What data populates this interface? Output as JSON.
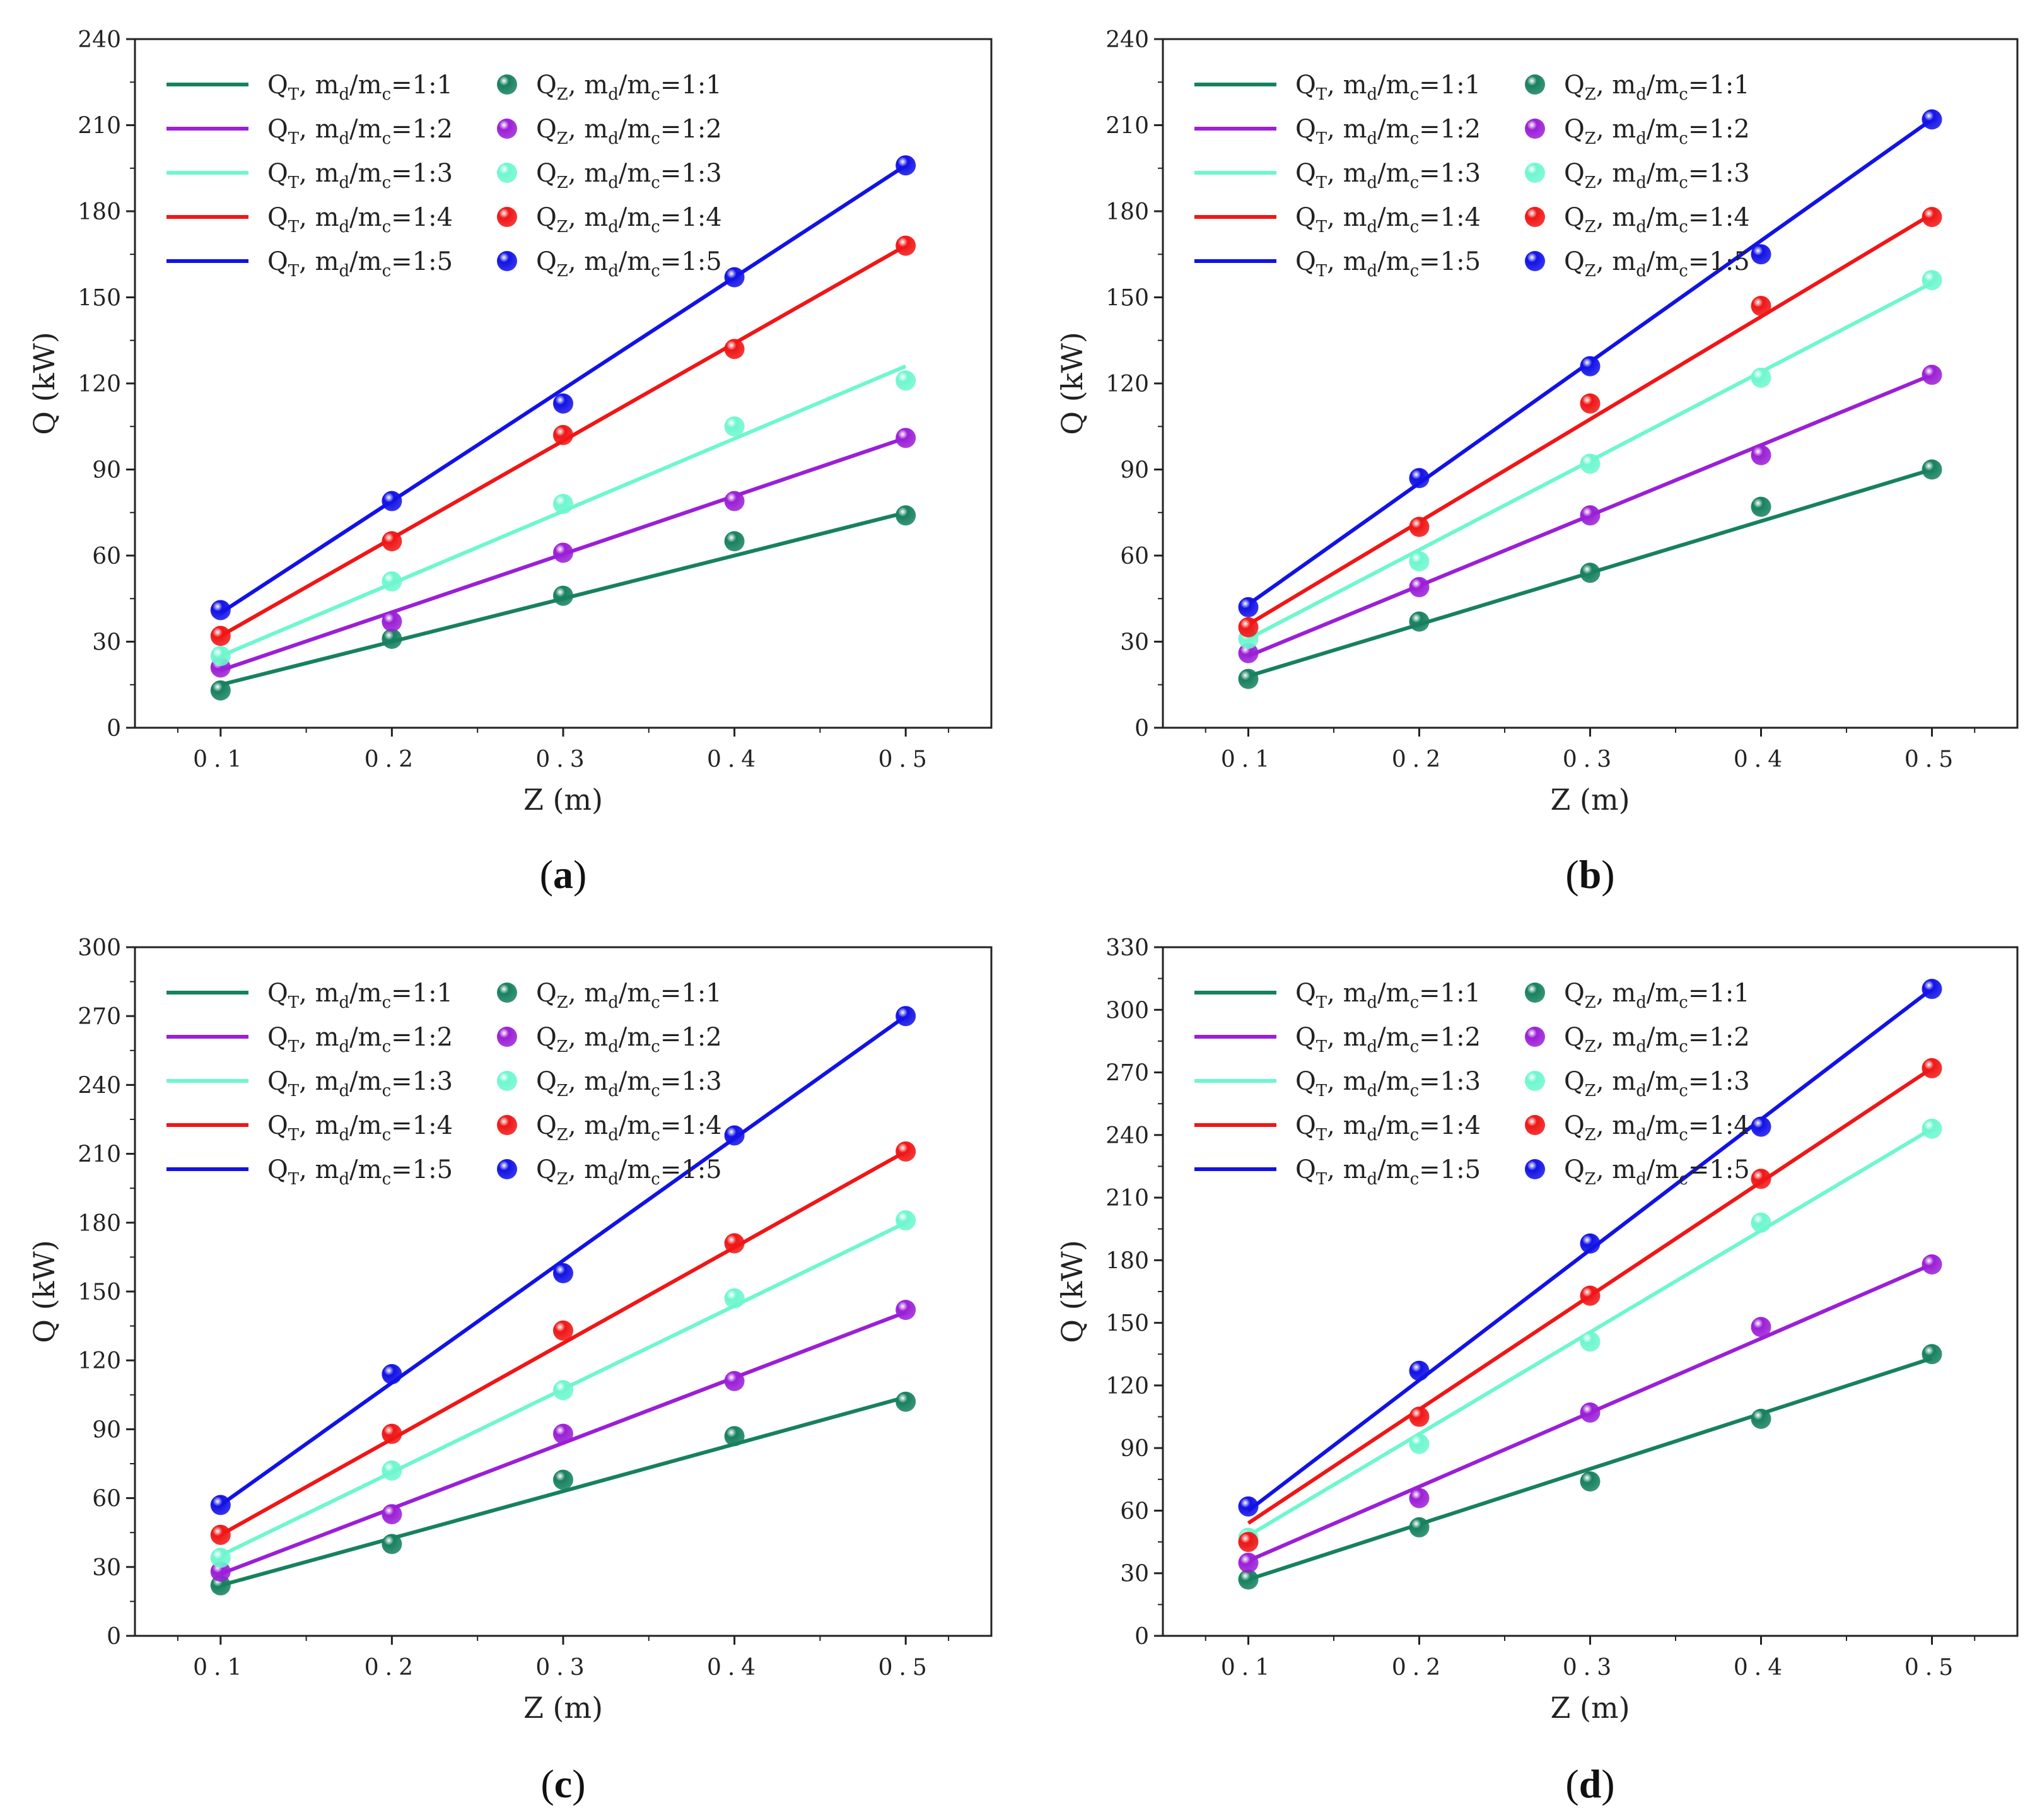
{
  "colors": {
    "1:1": "#17815f",
    "1:2": "#9b1fd6",
    "1:3": "#6ef7cf",
    "1:4": "#f01616",
    "1:5": "#1212e6",
    "axis": "#222222"
  },
  "legend_labels": {
    "line_prefix": "Q",
    "line_sub": "T",
    "point_prefix": "Q",
    "point_sub": "Z",
    "ratio_text": "m",
    "ratio_sub_d": "d",
    "ratio_slash": "/m",
    "ratio_sub_c": "c",
    "ratio_values": [
      "=1:1",
      "=1:2",
      "=1:3",
      "=1:4",
      "=1:5"
    ]
  },
  "chart_data": [
    {
      "type": "scatter",
      "panel_label": "a",
      "title": "",
      "xlabel": "Z (m)",
      "ylabel": "Q (kW)",
      "x": [
        0.1,
        0.2,
        0.3,
        0.4,
        0.5
      ],
      "x_tick_labels": [
        "0.1",
        "0.2",
        "0.3",
        "0.4",
        "0.5"
      ],
      "xlim": [
        0.05,
        0.55
      ],
      "ylim": [
        0,
        240
      ],
      "y_ticks": [
        0,
        30,
        60,
        90,
        120,
        150,
        180,
        210,
        240
      ],
      "legend": "top-left",
      "series": [
        {
          "name": "m_d/m_c=1:1",
          "ratio": "1:1",
          "points_QZ": [
            13,
            31,
            46,
            65,
            74
          ],
          "line_QT": [
            15,
            75
          ]
        },
        {
          "name": "m_d/m_c=1:2",
          "ratio": "1:2",
          "points_QZ": [
            21,
            37,
            61,
            79,
            101
          ],
          "line_QT": [
            20,
            101
          ]
        },
        {
          "name": "m_d/m_c=1:3",
          "ratio": "1:3",
          "points_QZ": [
            25,
            51,
            78,
            105,
            121
          ],
          "line_QT": [
            25,
            126
          ]
        },
        {
          "name": "m_d/m_c=1:4",
          "ratio": "1:4",
          "points_QZ": [
            32,
            65,
            102,
            132,
            168
          ],
          "line_QT": [
            32,
            168
          ]
        },
        {
          "name": "m_d/m_c=1:5",
          "ratio": "1:5",
          "points_QZ": [
            41,
            79,
            113,
            157,
            196
          ],
          "line_QT": [
            40,
            196
          ]
        }
      ]
    },
    {
      "type": "scatter",
      "panel_label": "b",
      "title": "",
      "xlabel": "Z (m)",
      "ylabel": "Q (kW)",
      "x": [
        0.1,
        0.2,
        0.3,
        0.4,
        0.5
      ],
      "x_tick_labels": [
        "0.1",
        "0.2",
        "0.3",
        "0.4",
        "0.5"
      ],
      "xlim": [
        0.05,
        0.55
      ],
      "ylim": [
        0,
        240
      ],
      "y_ticks": [
        0,
        30,
        60,
        90,
        120,
        150,
        180,
        210,
        240
      ],
      "legend": "top-left",
      "series": [
        {
          "name": "m_d/m_c=1:1",
          "ratio": "1:1",
          "points_QZ": [
            17,
            37,
            54,
            77,
            90
          ],
          "line_QT": [
            18,
            90
          ]
        },
        {
          "name": "m_d/m_c=1:2",
          "ratio": "1:2",
          "points_QZ": [
            26,
            49,
            74,
            95,
            123
          ],
          "line_QT": [
            25,
            123
          ]
        },
        {
          "name": "m_d/m_c=1:3",
          "ratio": "1:3",
          "points_QZ": [
            31,
            58,
            92,
            122,
            156
          ],
          "line_QT": [
            31,
            155
          ]
        },
        {
          "name": "m_d/m_c=1:4",
          "ratio": "1:4",
          "points_QZ": [
            35,
            70,
            113,
            147,
            178
          ],
          "line_QT": [
            36,
            179
          ]
        },
        {
          "name": "m_d/m_c=1:5",
          "ratio": "1:5",
          "points_QZ": [
            42,
            87,
            126,
            165,
            212
          ],
          "line_QT": [
            43,
            212
          ]
        }
      ]
    },
    {
      "type": "scatter",
      "panel_label": "c",
      "title": "",
      "xlabel": "Z (m)",
      "ylabel": "Q (kW)",
      "x": [
        0.1,
        0.2,
        0.3,
        0.4,
        0.5
      ],
      "x_tick_labels": [
        "0.1",
        "0.2",
        "0.3",
        "0.4",
        "0.5"
      ],
      "xlim": [
        0.05,
        0.55
      ],
      "ylim": [
        0,
        300
      ],
      "y_ticks": [
        0,
        30,
        60,
        90,
        120,
        150,
        180,
        210,
        240,
        270,
        300
      ],
      "legend": "top-left",
      "series": [
        {
          "name": "m_d/m_c=1:1",
          "ratio": "1:1",
          "points_QZ": [
            22,
            40,
            68,
            87,
            102
          ],
          "line_QT": [
            22,
            104
          ]
        },
        {
          "name": "m_d/m_c=1:2",
          "ratio": "1:2",
          "points_QZ": [
            28,
            53,
            88,
            111,
            142
          ],
          "line_QT": [
            27,
            141
          ]
        },
        {
          "name": "m_d/m_c=1:3",
          "ratio": "1:3",
          "points_QZ": [
            34,
            72,
            107,
            147,
            181
          ],
          "line_QT": [
            35,
            180
          ]
        },
        {
          "name": "m_d/m_c=1:4",
          "ratio": "1:4",
          "points_QZ": [
            44,
            88,
            133,
            171,
            211
          ],
          "line_QT": [
            44,
            211
          ]
        },
        {
          "name": "m_d/m_c=1:5",
          "ratio": "1:5",
          "points_QZ": [
            57,
            114,
            158,
            218,
            270
          ],
          "line_QT": [
            57,
            270
          ]
        }
      ]
    },
    {
      "type": "scatter",
      "panel_label": "d",
      "title": "",
      "xlabel": "Z (m)",
      "ylabel": "Q (kW)",
      "x": [
        0.1,
        0.2,
        0.3,
        0.4,
        0.5
      ],
      "x_tick_labels": [
        "0.1",
        "0.2",
        "0.3",
        "0.4",
        "0.5"
      ],
      "xlim": [
        0.05,
        0.55
      ],
      "ylim": [
        0,
        330
      ],
      "y_ticks": [
        0,
        30,
        60,
        90,
        120,
        150,
        180,
        210,
        240,
        270,
        300,
        330
      ],
      "legend": "top-left",
      "series": [
        {
          "name": "m_d/m_c=1:1",
          "ratio": "1:1",
          "points_QZ": [
            27,
            52,
            74,
            104,
            135
          ],
          "line_QT": [
            27,
            133
          ]
        },
        {
          "name": "m_d/m_c=1:2",
          "ratio": "1:2",
          "points_QZ": [
            35,
            66,
            107,
            148,
            178
          ],
          "line_QT": [
            36,
            178
          ]
        },
        {
          "name": "m_d/m_c=1:3",
          "ratio": "1:3",
          "points_QZ": [
            47,
            92,
            141,
            198,
            243
          ],
          "line_QT": [
            48,
            243
          ]
        },
        {
          "name": "m_d/m_c=1:4",
          "ratio": "1:4",
          "points_QZ": [
            45,
            105,
            163,
            219,
            272
          ],
          "line_QT": [
            54,
            272
          ]
        },
        {
          "name": "m_d/m_c=1:5",
          "ratio": "1:5",
          "points_QZ": [
            62,
            127,
            188,
            244,
            310
          ],
          "line_QT": [
            60,
            310
          ]
        }
      ]
    }
  ]
}
